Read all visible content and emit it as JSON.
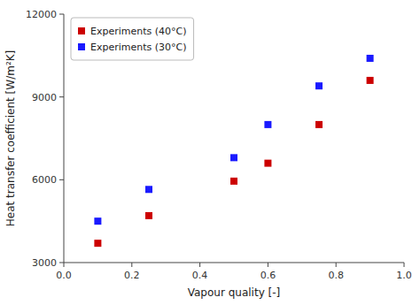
{
  "chart_data": {
    "type": "scatter",
    "xlabel": "Vapour quality [-]",
    "ylabel": "Heat transfer coefficient [W/m²K]",
    "series": [
      {
        "name": "Experiments (40°C)",
        "color": "#cc0000",
        "marker": "square",
        "x": [
          0.1,
          0.25,
          0.5,
          0.6,
          0.75,
          0.9
        ],
        "values": [
          3700,
          4700,
          5950,
          6600,
          8000,
          9600
        ]
      },
      {
        "name": "Experiments (30°C)",
        "color": "#1a1aff",
        "marker": "square",
        "x": [
          0.1,
          0.25,
          0.5,
          0.6,
          0.75,
          0.9
        ],
        "values": [
          4500,
          5650,
          6800,
          8000,
          9400,
          10400
        ]
      }
    ],
    "xlim": [
      0.0,
      1.0
    ],
    "ylim": [
      3000,
      12000
    ],
    "xticks": [
      {
        "value": 0.0,
        "label": "0.0"
      },
      0.2,
      0.4,
      0.6,
      0.8,
      {
        "value": 1.0,
        "label": "1.0"
      }
    ],
    "yticks": [
      3000,
      6000,
      9000,
      12000
    ],
    "legend": "upper left",
    "grid": false
  }
}
